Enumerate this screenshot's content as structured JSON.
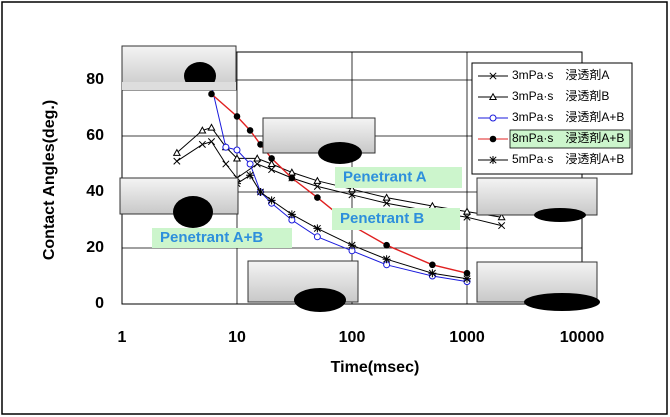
{
  "chart_data": {
    "type": "line",
    "xlabel": "Time(msec)",
    "ylabel": "Contact Angles(deg.)",
    "xscale": "log",
    "xlim": [
      1,
      10000
    ],
    "xticks": [
      1,
      10,
      100,
      1000,
      10000
    ],
    "ylim": [
      0,
      90
    ],
    "yticks": [
      0,
      20,
      40,
      60,
      80
    ],
    "grid": true,
    "legend": "upper right",
    "series": [
      {
        "name": "3mPa·s　浸透剤A",
        "color": "#000000",
        "marker": "x",
        "x": [
          3,
          5,
          6,
          8,
          10,
          15,
          20,
          30,
          50,
          100,
          200,
          500,
          1000,
          2000
        ],
        "values": [
          51,
          57,
          58,
          50,
          45,
          50,
          48,
          45,
          42,
          39,
          36,
          33,
          31,
          28
        ]
      },
      {
        "name": "3mPa·s　浸透剤B",
        "color": "#000000",
        "marker": "triangle",
        "x": [
          3,
          5,
          6,
          8,
          10,
          15,
          20,
          30,
          50,
          100,
          200,
          500,
          1000,
          2000
        ],
        "values": [
          54,
          62,
          63,
          56,
          52,
          52,
          50,
          47,
          44,
          41,
          38,
          35,
          33,
          31
        ]
      },
      {
        "name": "3mPa·s　浸透剤A+B",
        "color": "#1a1adc",
        "marker": "open-circle",
        "x": [
          6,
          8,
          10,
          13,
          16,
          20,
          30,
          50,
          100,
          200,
          500,
          1000
        ],
        "values": [
          78,
          56,
          55,
          50,
          40,
          36,
          30,
          24,
          19,
          14,
          10,
          8
        ]
      },
      {
        "name": "8mPa·s　浸透剤A+B",
        "color": "#e02020",
        "marker": "filled-circle",
        "x": [
          6,
          10,
          13,
          16,
          20,
          30,
          50,
          100,
          200,
          500,
          1000
        ],
        "values": [
          75,
          67,
          62,
          57,
          52,
          45,
          38,
          28,
          21,
          14,
          11
        ]
      },
      {
        "name": "5mPa·s　浸透剤A+B",
        "color": "#000000",
        "marker": "asterisk",
        "x": [
          10,
          13,
          16,
          20,
          30,
          50,
          100,
          200,
          500,
          1000
        ],
        "values": [
          43,
          46,
          40,
          37,
          32,
          27,
          21,
          16,
          11,
          9
        ]
      }
    ],
    "annotations": [
      "Penetrant A",
      "Penetrant B",
      "Penetrant A+B"
    ]
  }
}
